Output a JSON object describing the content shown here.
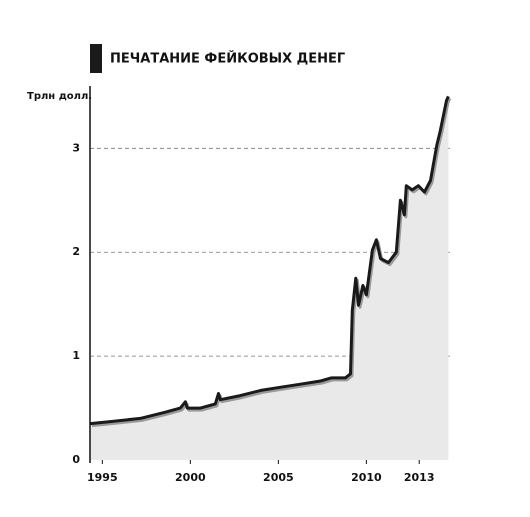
{
  "chart_data": {
    "type": "area",
    "title": "ПЕЧАТАНИЕ ФЕЙКОВЫХ ДЕНЕГ",
    "y_label": "Трлн долл.",
    "x": [
      1994.32,
      1995.45,
      1997.16,
      1998.58,
      1999.43,
      1999.72,
      1999.83,
      2000.57,
      2001.42,
      2001.6,
      2001.7,
      2002.84,
      2004.0,
      2005.1,
      2006.25,
      2007.4,
      2008.0,
      2008.8,
      2009.1,
      2009.2,
      2009.4,
      2009.55,
      2009.8,
      2010.0,
      2010.34,
      2010.57,
      2010.8,
      2011.25,
      2011.7,
      2011.93,
      2012.16,
      2012.27,
      2012.6,
      2012.95,
      2013.3,
      2013.64,
      2014.0,
      2014.2,
      2014.55,
      2014.66
    ],
    "values": [
      0.35,
      0.37,
      0.4,
      0.46,
      0.5,
      0.56,
      0.5,
      0.5,
      0.54,
      0.64,
      0.58,
      0.62,
      0.67,
      0.7,
      0.73,
      0.76,
      0.79,
      0.79,
      0.83,
      1.44,
      1.75,
      1.49,
      1.68,
      1.59,
      2.02,
      2.12,
      1.94,
      1.9,
      2.0,
      2.5,
      2.36,
      2.64,
      2.6,
      2.64,
      2.58,
      2.69,
      3.03,
      3.17,
      3.46,
      3.5
    ],
    "color": "#1a1a1a",
    "fill_color": "#e9e9e9",
    "xlim": [
      1994.3,
      2014.75
    ],
    "xticks": [
      1995,
      2000,
      2005,
      2010,
      2013
    ],
    "ylim": [
      0,
      3.6
    ],
    "yticks": [
      0,
      1,
      2,
      3
    ],
    "grid": true
  }
}
